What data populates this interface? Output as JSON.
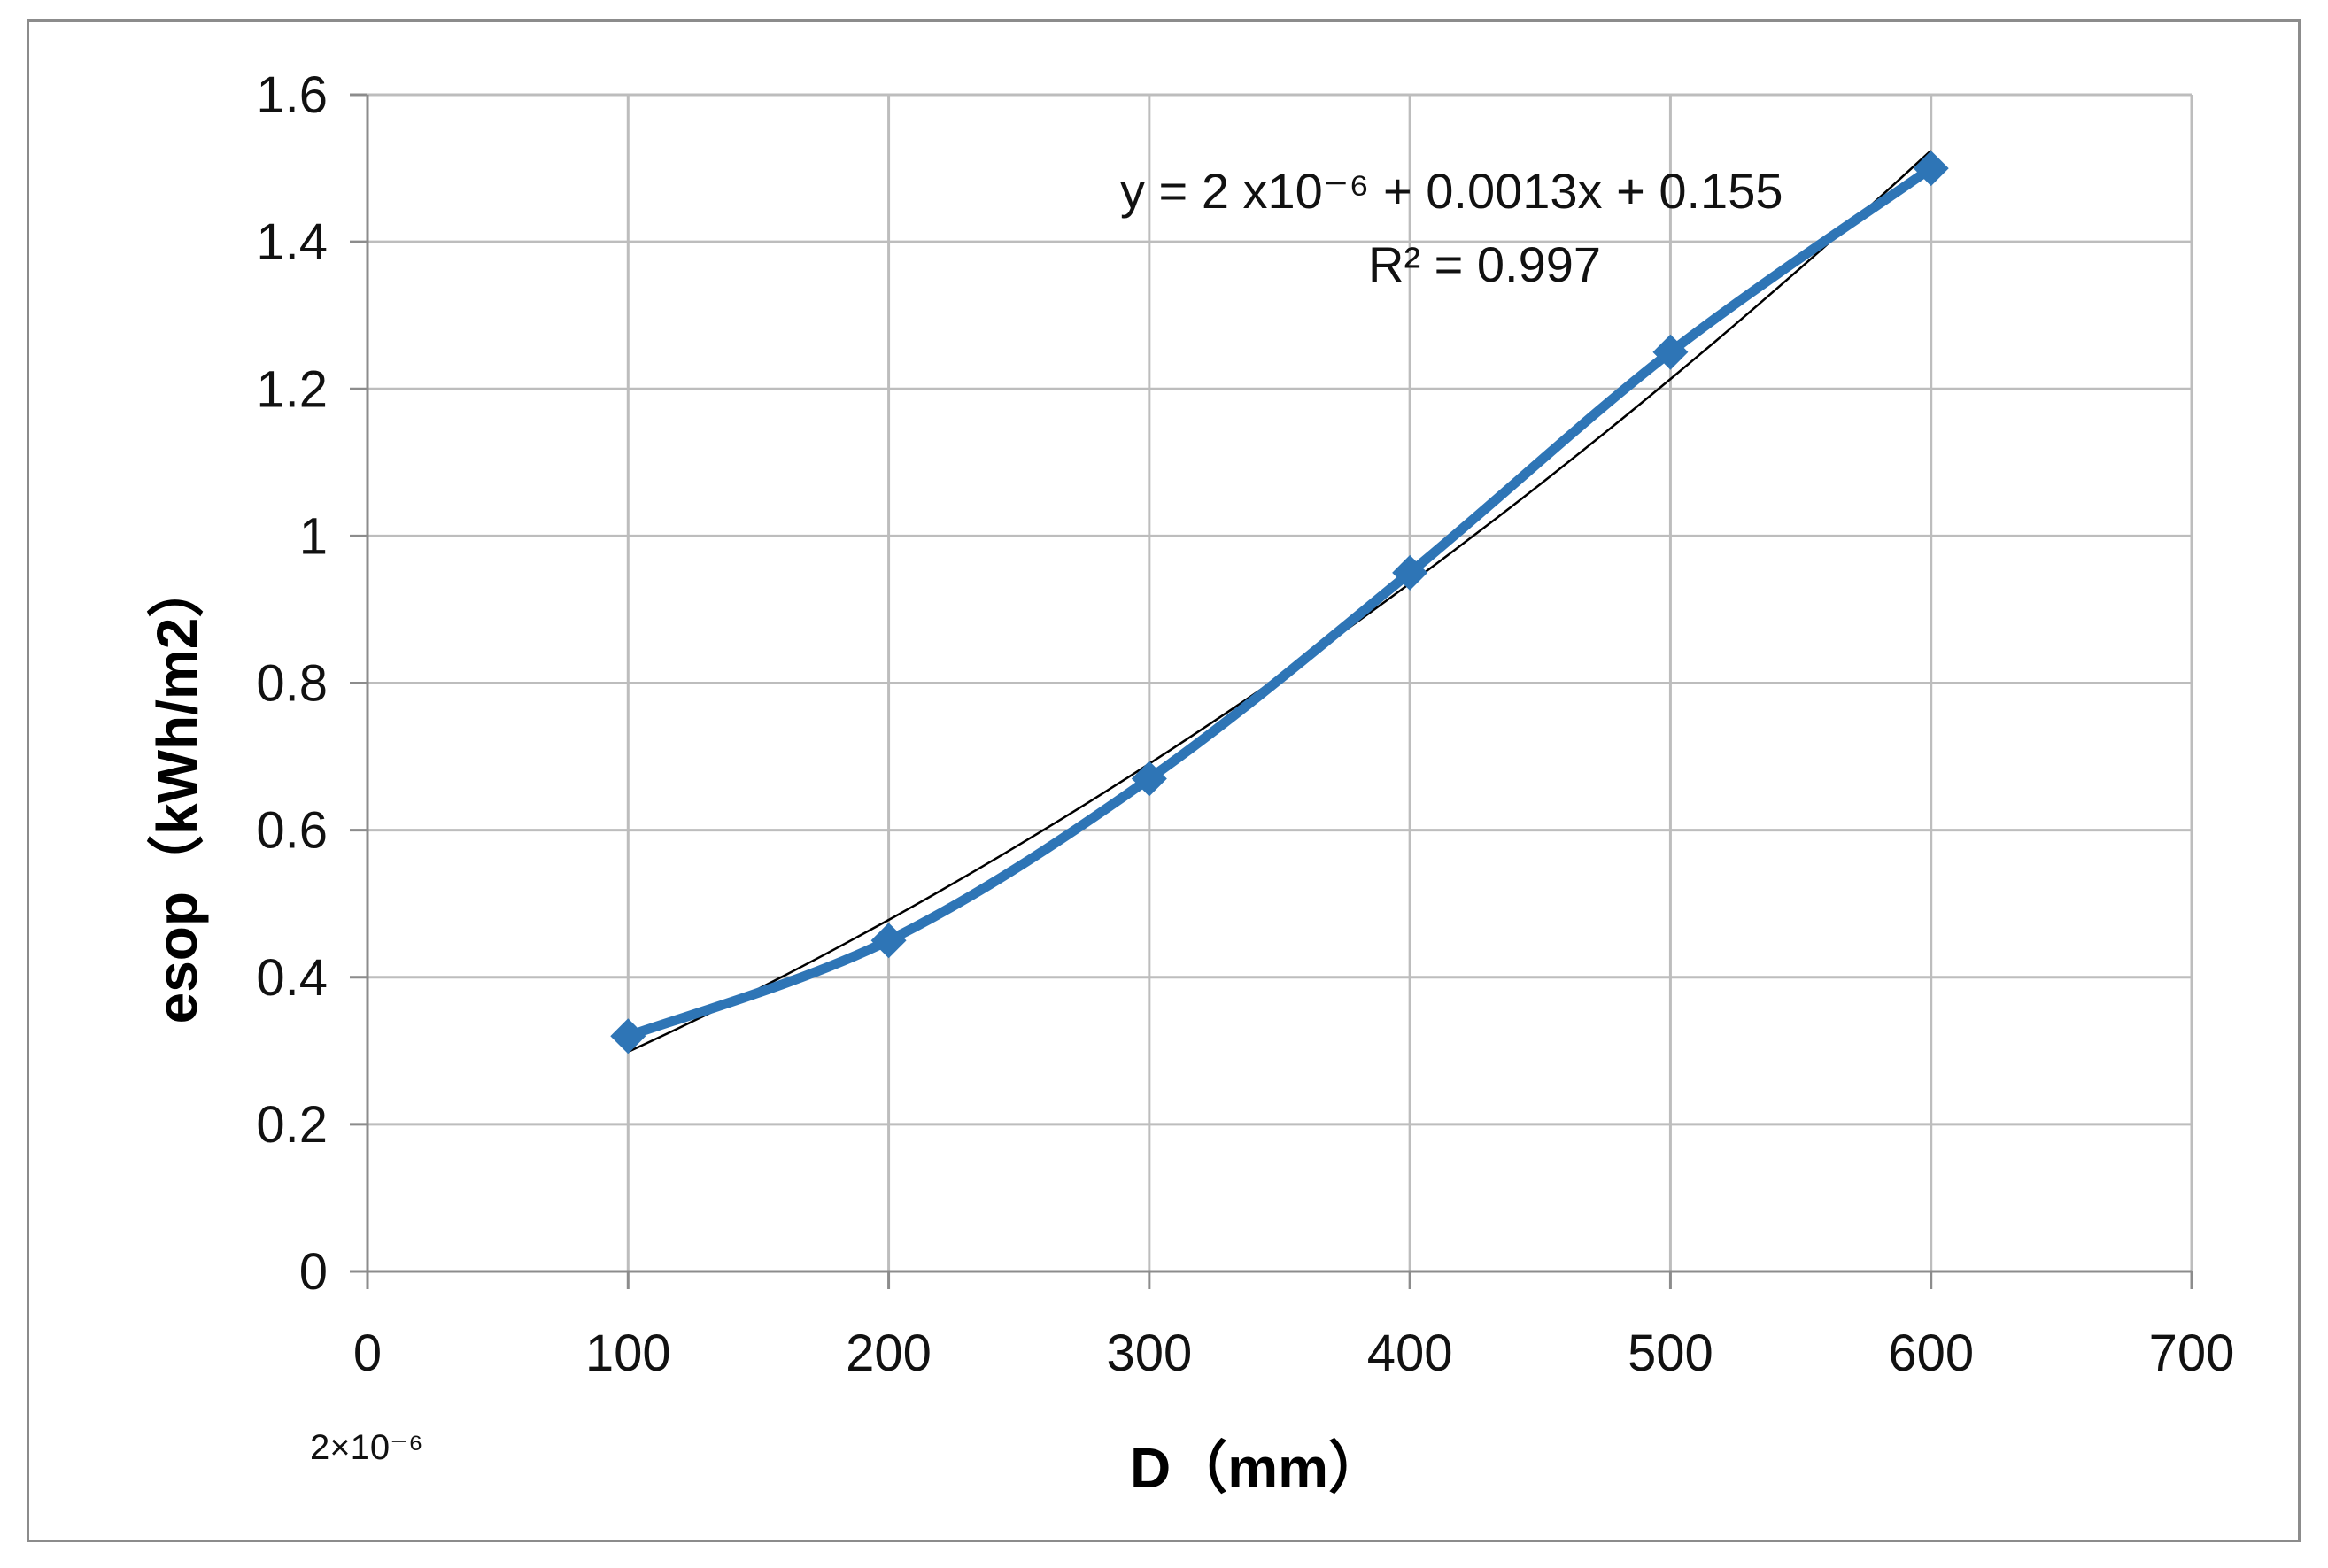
{
  "chart_data": {
    "type": "line",
    "xlabel": "D（mm）",
    "ylabel": "esop（kWh/m2）",
    "xlim": [
      0,
      700
    ],
    "ylim": [
      0,
      1.6
    ],
    "xticks": [
      "0",
      "100",
      "200",
      "300",
      "400",
      "500",
      "600",
      "700"
    ],
    "yticks": [
      "0",
      "0.2",
      "0.4",
      "0.6",
      "0.8",
      "1",
      "1.2",
      "1.4",
      "1.6"
    ],
    "grid": true,
    "legend": "none",
    "series": [
      {
        "x": [
          100,
          200,
          300,
          400,
          500,
          600
        ],
        "y": [
          0.32,
          0.45,
          0.67,
          0.95,
          1.25,
          1.5
        ],
        "color": "#2e75b6",
        "marker": "diamond"
      }
    ],
    "trendline": {
      "type": "polynomial-2",
      "color": "#000000",
      "equation": "y = 2 x10⁻⁶ + 0.0013x + 0.155",
      "r2": "R² = 0.997"
    },
    "annotations": [
      "2×10⁻⁶"
    ]
  }
}
